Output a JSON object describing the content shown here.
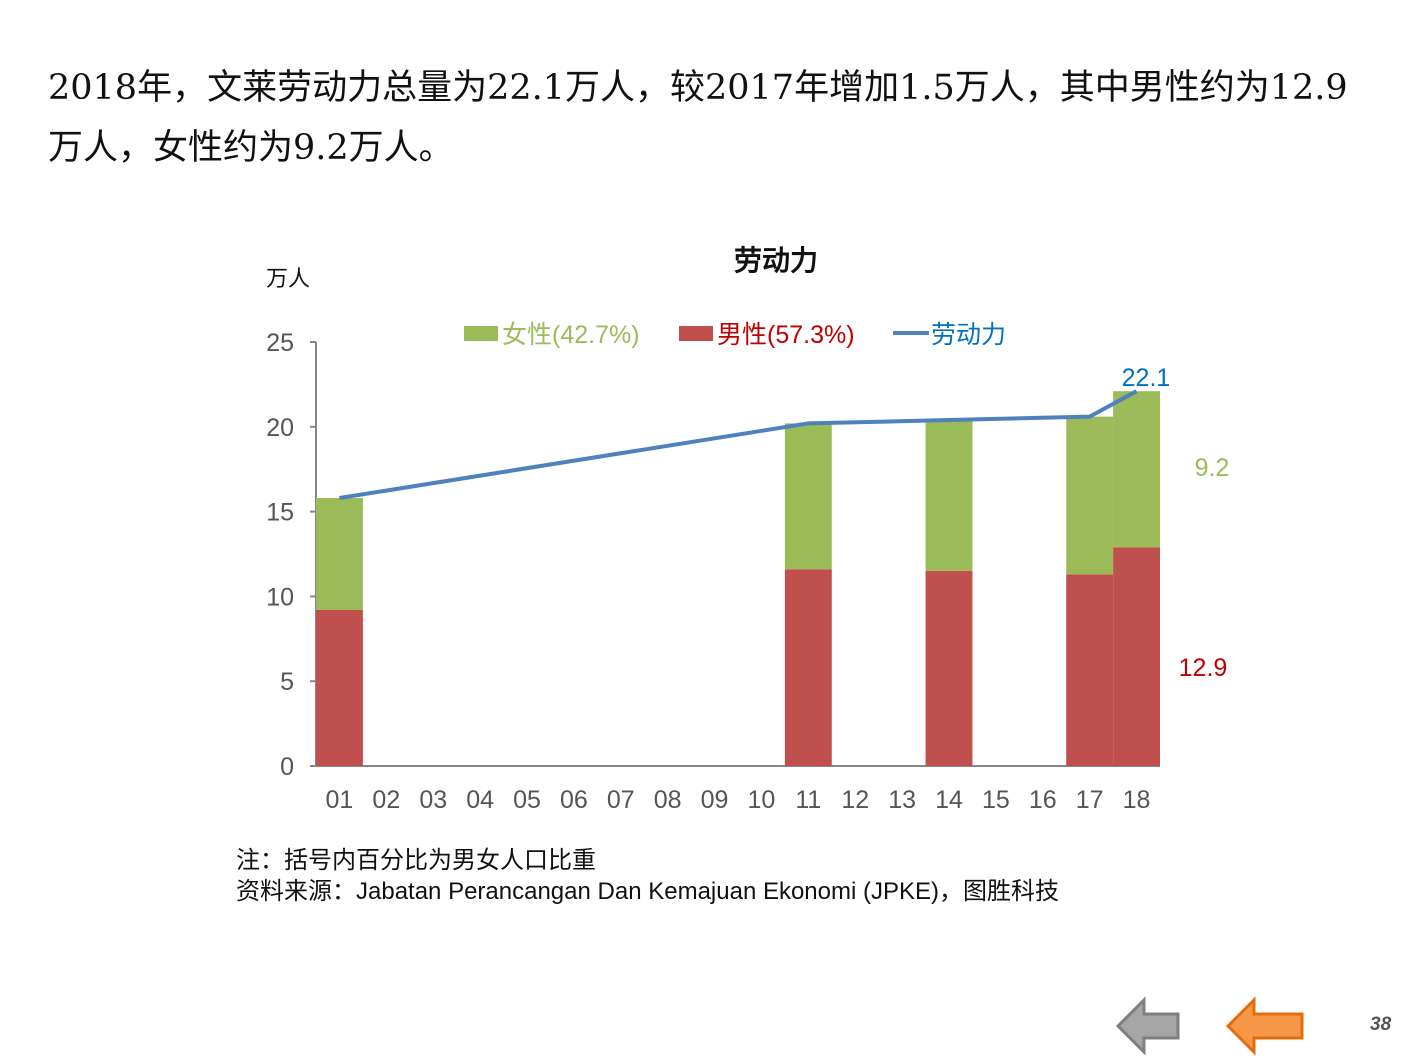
{
  "intro_text": "2018年，文莱劳动力总量为22.1万人，较2017年增加1.5万人，其中男性约为12.9万人，女性约为9.2万人。",
  "notes": {
    "note": "注：括号内百分比为男女人口比重",
    "source": "资料来源：Jabatan Perancangan Dan Kemajuan Ekonomi (JPKE)，图胜科技"
  },
  "page_number": "38",
  "nav": {
    "prev_icon": "arrow-left-gray",
    "next_icon": "arrow-left-orange"
  },
  "chart_data": {
    "type": "bar",
    "stacked": true,
    "title": "劳动力",
    "ylabel": "万人",
    "xlabel": "",
    "ylim": [
      0,
      25
    ],
    "yticks": [
      "0",
      "5",
      "10",
      "15",
      "20",
      "25"
    ],
    "categories": [
      "01",
      "02",
      "03",
      "04",
      "05",
      "06",
      "07",
      "08",
      "09",
      "10",
      "11",
      "12",
      "13",
      "14",
      "15",
      "16",
      "17",
      "18"
    ],
    "series": [
      {
        "name": "男性(57.3%)",
        "type": "bar",
        "color": "#C0504D",
        "values": [
          9.2,
          null,
          null,
          null,
          null,
          null,
          null,
          null,
          null,
          null,
          11.6,
          null,
          null,
          11.5,
          null,
          null,
          11.3,
          12.9
        ]
      },
      {
        "name": "女性(42.7%)",
        "type": "bar",
        "color": "#9BBB59",
        "values": [
          6.6,
          null,
          null,
          null,
          null,
          null,
          null,
          null,
          null,
          null,
          8.6,
          null,
          null,
          8.9,
          null,
          null,
          9.3,
          9.2
        ]
      },
      {
        "name": "劳动力",
        "type": "line",
        "color": "#4F81BD",
        "values": [
          15.8,
          null,
          null,
          null,
          null,
          null,
          null,
          null,
          null,
          null,
          20.2,
          null,
          null,
          20.4,
          null,
          null,
          20.6,
          22.1
        ]
      }
    ],
    "legend_order": [
      "女性(42.7%)",
      "男性(57.3%)",
      "劳动力"
    ],
    "legend_position": "top",
    "annotations": [
      {
        "text": "22.1",
        "color": "#0070C0"
      },
      {
        "text": "9.2",
        "color": "#9BBB59"
      },
      {
        "text": "12.9",
        "color": "#C00000"
      }
    ]
  }
}
